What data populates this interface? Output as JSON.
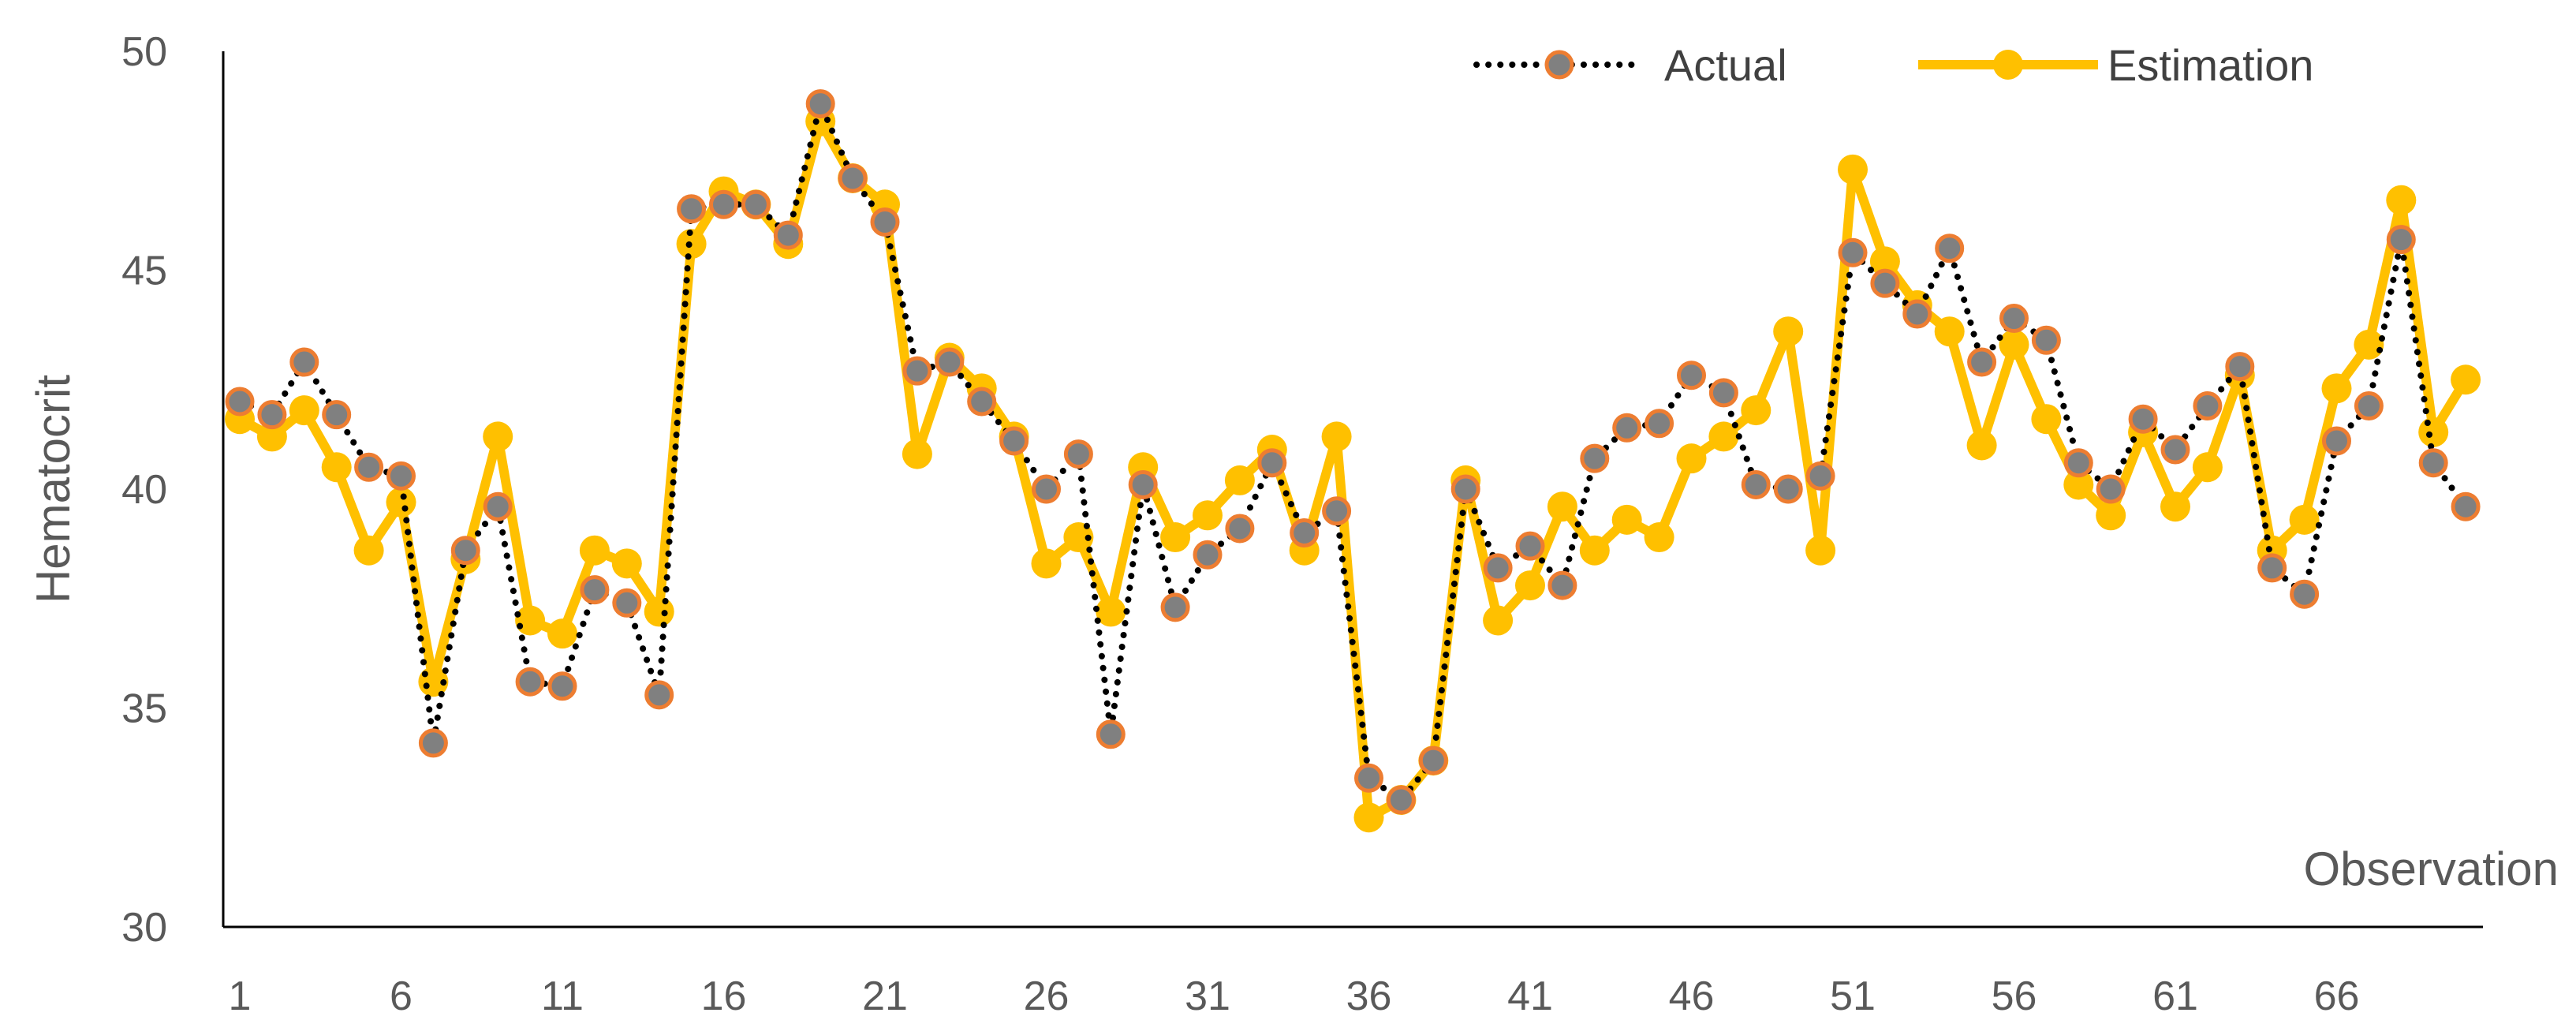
{
  "chart_data": {
    "type": "line",
    "ylabel": "Hematocrit",
    "xlabel": "Observation",
    "ylim": [
      30,
      50
    ],
    "y_ticks": [
      "30",
      "35",
      "40",
      "45",
      "50"
    ],
    "x_ticks": [
      "1",
      "6",
      "11",
      "16",
      "21",
      "26",
      "31",
      "36",
      "41",
      "46",
      "51",
      "56",
      "61",
      "66"
    ],
    "x": [
      1,
      2,
      3,
      4,
      5,
      6,
      7,
      8,
      9,
      10,
      11,
      12,
      13,
      14,
      15,
      16,
      17,
      18,
      19,
      20,
      21,
      22,
      23,
      24,
      25,
      26,
      27,
      28,
      29,
      30,
      31,
      32,
      33,
      34,
      35,
      36,
      37,
      38,
      39,
      40,
      41,
      42,
      43,
      44,
      45,
      46,
      47,
      48,
      49,
      50,
      51,
      52,
      53,
      54,
      55,
      56,
      57,
      58,
      59,
      60,
      61,
      62,
      63,
      64,
      65,
      66,
      67,
      68,
      69,
      70
    ],
    "grid": false,
    "legend_position": "top-right",
    "series": [
      {
        "name": "Actual",
        "style": "dotted-line-with-markers",
        "line_color": "#000000",
        "marker_fill": "#808080",
        "marker_edge": "#ED7D31",
        "values": [
          42.0,
          41.7,
          42.9,
          41.7,
          40.5,
          40.3,
          34.2,
          38.6,
          39.6,
          35.6,
          35.5,
          37.7,
          37.4,
          35.3,
          46.4,
          46.5,
          46.5,
          45.8,
          48.8,
          47.1,
          46.1,
          42.7,
          42.9,
          42.0,
          41.1,
          40.0,
          40.8,
          34.4,
          40.1,
          37.3,
          38.5,
          39.1,
          40.6,
          39.0,
          39.5,
          33.4,
          32.9,
          33.8,
          40.0,
          38.2,
          38.7,
          37.8,
          40.7,
          41.4,
          41.5,
          42.6,
          42.2,
          40.1,
          40.0,
          40.3,
          45.4,
          44.7,
          44.0,
          45.5,
          42.9,
          43.9,
          43.4,
          40.6,
          40.0,
          41.6,
          40.9,
          41.9,
          42.8,
          38.2,
          37.6,
          41.1,
          41.9,
          45.7,
          40.6,
          39.6
        ]
      },
      {
        "name": "Estimation",
        "style": "solid-line-with-markers",
        "line_color": "#FFC000",
        "marker_fill": "#FFC000",
        "marker_edge": "#FFC000",
        "values": [
          41.6,
          41.2,
          41.8,
          40.5,
          38.6,
          39.7,
          35.6,
          38.4,
          41.2,
          37.0,
          36.7,
          38.6,
          38.3,
          37.2,
          45.6,
          46.8,
          46.5,
          45.6,
          48.4,
          47.1,
          46.5,
          40.8,
          43.0,
          42.3,
          41.2,
          38.3,
          38.9,
          37.2,
          40.5,
          38.9,
          39.4,
          40.2,
          40.9,
          38.6,
          41.2,
          32.5,
          32.9,
          33.8,
          40.2,
          37.0,
          37.8,
          39.6,
          38.6,
          39.3,
          38.9,
          40.7,
          41.2,
          41.8,
          43.6,
          38.6,
          47.3,
          45.2,
          44.2,
          43.6,
          41.0,
          43.3,
          41.6,
          40.1,
          39.4,
          41.3,
          39.6,
          40.5,
          42.6,
          38.6,
          39.3,
          42.3,
          43.3,
          46.6,
          41.3,
          42.5
        ]
      }
    ]
  }
}
